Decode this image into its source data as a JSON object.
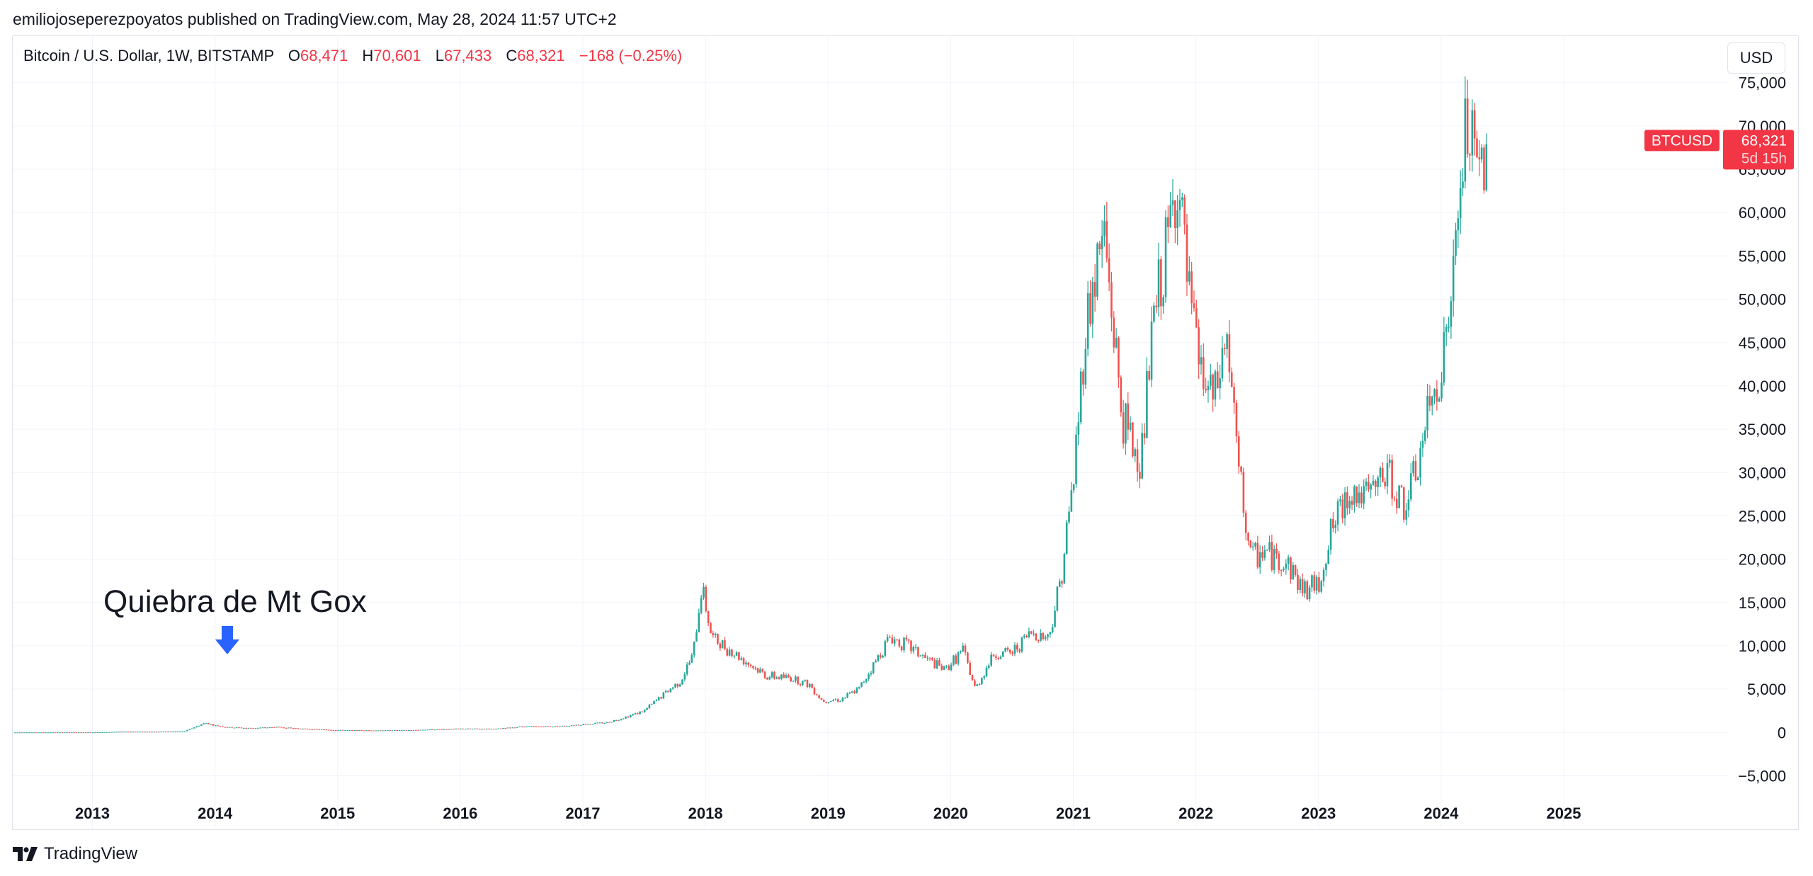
{
  "header": {
    "publisher_line": "emiliojoseperezpoyatos published on TradingView.com, May 28, 2024 11:57 UTC+2"
  },
  "legend": {
    "symbol": "Bitcoin / U.S. Dollar, 1W, BITSTAMP",
    "open_label": "O",
    "open": "68,471",
    "high_label": "H",
    "high": "70,601",
    "low_label": "L",
    "low": "67,433",
    "close_label": "C",
    "close": "68,321",
    "change": "−168 (−0.25%)"
  },
  "currency_button": "USD",
  "price_tag": {
    "symbol": "BTCUSD",
    "price": "68,321",
    "countdown": "5d 15h"
  },
  "annotation": {
    "text": "Quiebra de Mt Gox",
    "arrow_color": "#2962ff"
  },
  "footer": {
    "brand": "TradingView"
  },
  "colors": {
    "up": "#26a69a",
    "down": "#ef5350",
    "grid": "#f0f3fa",
    "tag": "#f23645"
  },
  "chart_data": {
    "type": "candlestick",
    "interval": "1W",
    "y_ticks": [
      -5000,
      0,
      5000,
      10000,
      15000,
      20000,
      25000,
      30000,
      35000,
      40000,
      45000,
      50000,
      55000,
      60000,
      65000,
      70000,
      75000
    ],
    "y_tick_labels": [
      "−5,000",
      "0",
      "5,000",
      "10,000",
      "15,000",
      "20,000",
      "25,000",
      "30,000",
      "35,000",
      "40,000",
      "45,000",
      "50,000",
      "55,000",
      "60,000",
      "65,000",
      "70,000",
      "75,000"
    ],
    "x_ticks": [
      2013,
      2014,
      2015,
      2016,
      2017,
      2018,
      2019,
      2020,
      2021,
      2022,
      2023,
      2024,
      2025
    ],
    "x_tick_labels": [
      "2013",
      "2014",
      "2015",
      "2016",
      "2017",
      "2018",
      "2019",
      "2020",
      "2021",
      "2022",
      "2023",
      "2024",
      "2025"
    ],
    "x_range": [
      2012.35,
      2026.34
    ],
    "y_range": [
      -7000,
      78000
    ],
    "annotation_date": 2014.1,
    "approx_weekly_close": [
      [
        2012.35,
        5
      ],
      [
        2012.7,
        11
      ],
      [
        2013.0,
        13
      ],
      [
        2013.25,
        100
      ],
      [
        2013.5,
        90
      ],
      [
        2013.75,
        140
      ],
      [
        2013.92,
        1100
      ],
      [
        2014.0,
        800
      ],
      [
        2014.1,
        600
      ],
      [
        2014.3,
        500
      ],
      [
        2014.5,
        620
      ],
      [
        2014.75,
        400
      ],
      [
        2015.0,
        270
      ],
      [
        2015.3,
        240
      ],
      [
        2015.6,
        270
      ],
      [
        2015.85,
        380
      ],
      [
        2016.0,
        430
      ],
      [
        2016.3,
        420
      ],
      [
        2016.5,
        680
      ],
      [
        2016.8,
        700
      ],
      [
        2017.0,
        950
      ],
      [
        2017.2,
        1150
      ],
      [
        2017.35,
        1800
      ],
      [
        2017.5,
        2500
      ],
      [
        2017.65,
        4300
      ],
      [
        2017.8,
        6000
      ],
      [
        2017.9,
        9000
      ],
      [
        2017.97,
        17000
      ],
      [
        2018.05,
        11000
      ],
      [
        2018.15,
        10000
      ],
      [
        2018.3,
        8500
      ],
      [
        2018.5,
        6500
      ],
      [
        2018.7,
        6300
      ],
      [
        2018.85,
        5500
      ],
      [
        2018.95,
        3700
      ],
      [
        2019.1,
        3800
      ],
      [
        2019.25,
        5000
      ],
      [
        2019.4,
        8500
      ],
      [
        2019.5,
        11000
      ],
      [
        2019.65,
        10000
      ],
      [
        2019.8,
        8500
      ],
      [
        2019.95,
        7200
      ],
      [
        2020.1,
        9500
      ],
      [
        2020.2,
        5000
      ],
      [
        2020.35,
        9000
      ],
      [
        2020.5,
        9200
      ],
      [
        2020.65,
        11500
      ],
      [
        2020.8,
        11000
      ],
      [
        2020.9,
        18000
      ],
      [
        2021.0,
        29000
      ],
      [
        2021.1,
        47000
      ],
      [
        2021.25,
        58000
      ],
      [
        2021.4,
        36000
      ],
      [
        2021.55,
        31000
      ],
      [
        2021.65,
        47000
      ],
      [
        2021.75,
        55000
      ],
      [
        2021.85,
        64000
      ],
      [
        2021.95,
        49000
      ],
      [
        2022.05,
        41000
      ],
      [
        2022.15,
        38000
      ],
      [
        2022.25,
        46000
      ],
      [
        2022.35,
        30000
      ],
      [
        2022.45,
        20000
      ],
      [
        2022.55,
        21000
      ],
      [
        2022.65,
        20000
      ],
      [
        2022.75,
        19500
      ],
      [
        2022.87,
        16500
      ],
      [
        2023.0,
        17000
      ],
      [
        2023.1,
        23000
      ],
      [
        2023.25,
        28000
      ],
      [
        2023.4,
        27000
      ],
      [
        2023.55,
        30000
      ],
      [
        2023.7,
        26000
      ],
      [
        2023.8,
        30000
      ],
      [
        2023.9,
        37000
      ],
      [
        2024.0,
        42000
      ],
      [
        2024.1,
        52000
      ],
      [
        2024.2,
        70000
      ],
      [
        2024.3,
        64000
      ],
      [
        2024.38,
        68321
      ]
    ],
    "last": {
      "open": 68471,
      "high": 70601,
      "low": 67433,
      "close": 68321
    }
  }
}
